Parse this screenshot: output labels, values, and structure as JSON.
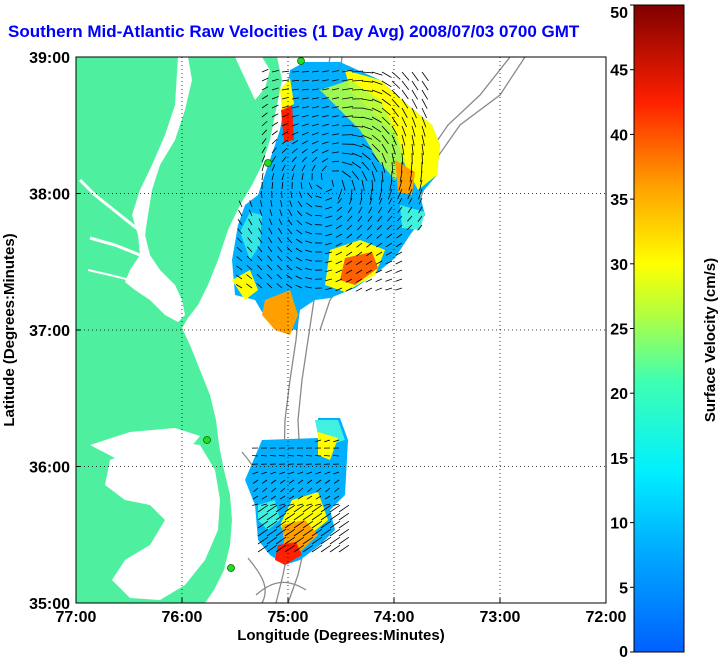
{
  "title": "Southern Mid-Atlantic Raw Velocities (1 Day Avg) 2008/07/03 0700 GMT",
  "map": {
    "xlabel": "Longitude (Degrees:Minutes)",
    "ylabel": "Latitude (Degrees:Minutes)",
    "lon_range": [
      -77,
      -72
    ],
    "lat_range": [
      35,
      39
    ],
    "x_ticks": [
      {
        "lon": -77,
        "label": "77:00"
      },
      {
        "lon": -76,
        "label": "76:00"
      },
      {
        "lon": -75,
        "label": "75:00"
      },
      {
        "lon": -74,
        "label": "74:00"
      },
      {
        "lon": -73,
        "label": "73:00"
      },
      {
        "lon": -72,
        "label": "72:00"
      }
    ],
    "y_ticks": [
      {
        "lat": 35,
        "label": "35:00"
      },
      {
        "lat": 36,
        "label": "36:00"
      },
      {
        "lat": 37,
        "label": "37:00"
      },
      {
        "lat": 38,
        "label": "38:00"
      },
      {
        "lat": 39,
        "label": "39:00"
      }
    ],
    "land_color": "#4ef0a0",
    "grid": "dotted"
  },
  "colorbar": {
    "label": "Surface Velocity (cm/s)",
    "min": 0,
    "max": 50,
    "ticks": [
      0,
      5,
      10,
      15,
      20,
      25,
      30,
      35,
      40,
      45,
      50
    ]
  }
}
